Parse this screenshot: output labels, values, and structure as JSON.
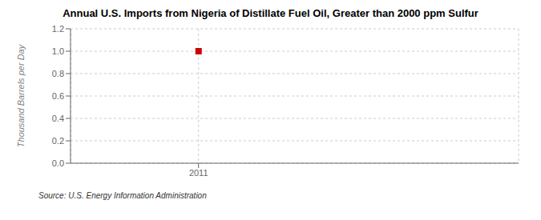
{
  "chart_data": {
    "type": "scatter",
    "title": "Annual U.S. Imports from Nigeria of Distillate Fuel Oil, Greater than 2000 ppm Sulfur",
    "y_label": "Thousand Barrels per Day",
    "annotations": [
      "Source: U.S. Energy Information Administration"
    ],
    "x": [
      2011
    ],
    "values": [
      1.0
    ],
    "color": "#cc0000",
    "marker": "square",
    "xlim": [
      2010.4,
      2012.5
    ],
    "xticks": [
      2011
    ],
    "ylim": [
      0,
      1.2
    ],
    "yticks": [
      {
        "value": 0,
        "label": "0.0"
      },
      0.2,
      0.4,
      0.6,
      0.8,
      {
        "value": 1,
        "label": "1.0"
      },
      1.2
    ],
    "grid": true
  }
}
